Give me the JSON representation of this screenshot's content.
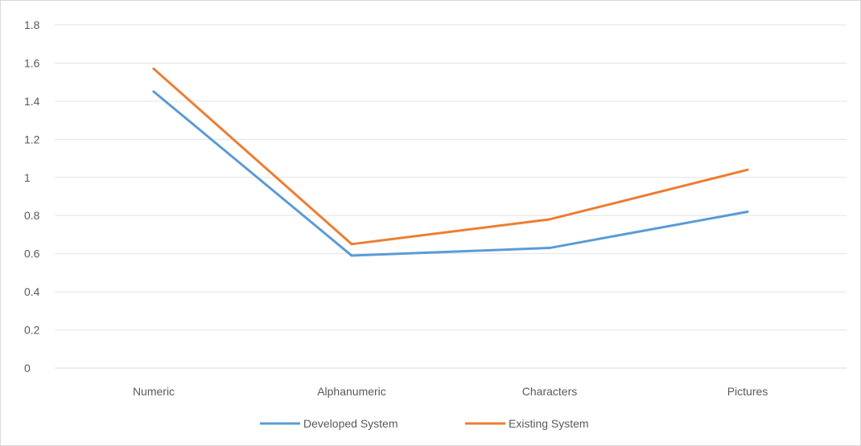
{
  "chart_data": {
    "type": "line",
    "title": "",
    "xlabel": "",
    "ylabel": "",
    "categories": [
      "Numeric",
      "Alphanumeric",
      "Characters",
      "Pictures"
    ],
    "ylim": [
      0,
      1.8
    ],
    "yticks": [
      "0",
      "0.2",
      "0.4",
      "0.6",
      "0.8",
      "1",
      "1.2",
      "1.4",
      "1.6",
      "1.8"
    ],
    "grid": true,
    "legend_position": "bottom",
    "series": [
      {
        "name": "Developed System",
        "values": [
          1.45,
          0.59,
          0.63,
          0.82
        ],
        "color": "#5b9bd5"
      },
      {
        "name": "Existing System",
        "values": [
          1.57,
          0.65,
          0.78,
          1.04
        ],
        "color": "#ed7d31"
      }
    ]
  }
}
